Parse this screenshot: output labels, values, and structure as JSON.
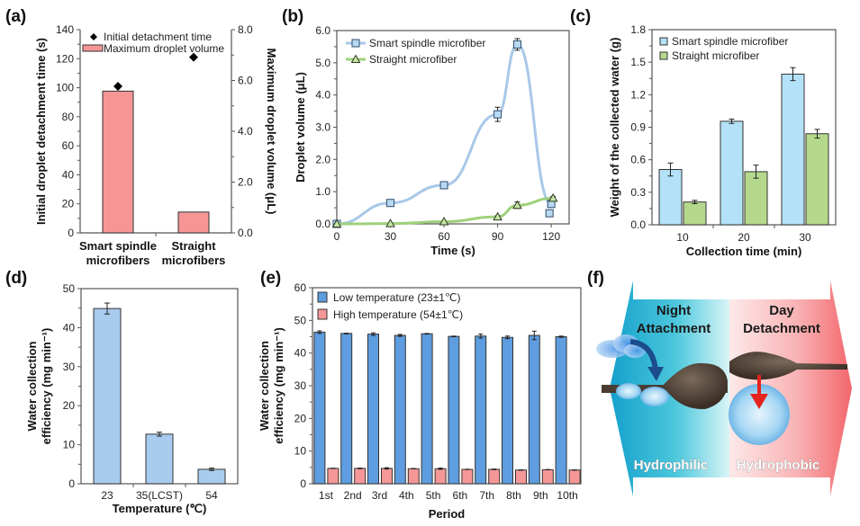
{
  "panels": {
    "a": {
      "label": "(a)"
    },
    "b": {
      "label": "(b)"
    },
    "c": {
      "label": "(c)"
    },
    "d": {
      "label": "(d)"
    },
    "e": {
      "label": "(e)"
    },
    "f": {
      "label": "(f)"
    }
  },
  "chart_data": [
    {
      "id": "a",
      "type": "bar",
      "title": "",
      "categories": [
        "Smart spindle microfibers",
        "Straight microfibers"
      ],
      "category_lines": [
        [
          "Smart spindle",
          "microfibers"
        ],
        [
          "Straight",
          "microfibers"
        ]
      ],
      "ylabel": "Initial droplet detachment time (s)",
      "y2label": "Maximum droplet volume (μL)",
      "ylim": [
        0,
        140
      ],
      "y2lim": [
        0,
        8.0
      ],
      "yticks": [
        0,
        20,
        40,
        60,
        80,
        100,
        120,
        140
      ],
      "y2ticks": [
        "0.0",
        "2.0",
        "4.0",
        "6.0",
        "8.0"
      ],
      "series": [
        {
          "name": "Initial detachment time",
          "kind": "marker",
          "axis": "left",
          "values": [
            101,
            121
          ],
          "color": "#000000"
        },
        {
          "name": "Maximum droplet volume",
          "kind": "bar",
          "axis": "right",
          "values": [
            5.58,
            0.82
          ],
          "color": "#f59595"
        }
      ],
      "legend": "top"
    },
    {
      "id": "b",
      "type": "line",
      "xlabel": "Time (s)",
      "ylabel": "Droplet volume (μL)",
      "xlim": [
        0,
        130
      ],
      "ylim": [
        0,
        6.0
      ],
      "xticks": [
        0,
        30,
        60,
        90,
        120
      ],
      "yticks": [
        "0.0",
        "1.0",
        "2.0",
        "3.0",
        "4.0",
        "5.0",
        "6.0"
      ],
      "series": [
        {
          "name": "Smart spindle microfiber",
          "marker": "square",
          "color": "#a8c8e8",
          "marker_fill": "#b9d9f2",
          "points": [
            [
              0,
              0.0
            ],
            [
              30,
              0.65
            ],
            [
              60,
              1.2
            ],
            [
              90,
              3.4
            ],
            [
              101,
              5.57
            ],
            [
              120,
              0.62
            ],
            [
              119,
              0.33
            ]
          ],
          "errors": [
            0,
            0.03,
            0.1,
            0.22,
            0.18,
            0.1,
            0
          ]
        },
        {
          "name": "Straight microfiber",
          "marker": "triangle",
          "color": "#9ed17a",
          "marker_fill": "#c6e6a8",
          "points": [
            [
              0,
              0.0
            ],
            [
              30,
              0.01
            ],
            [
              60,
              0.07
            ],
            [
              90,
              0.22
            ],
            [
              101,
              0.58
            ],
            [
              121,
              0.8
            ]
          ],
          "errors": [
            0,
            0,
            0.02,
            0.03,
            0.1,
            0.05
          ]
        }
      ],
      "legend": "top-left"
    },
    {
      "id": "c",
      "type": "bar",
      "xlabel": "Collection time (min)",
      "ylabel": "Weight of the collected water (g)",
      "categories": [
        "10",
        "20",
        "30"
      ],
      "ylim": [
        0,
        1.8
      ],
      "yticks": [
        "0.0",
        "0.3",
        "0.6",
        "0.9",
        "1.2",
        "1.5",
        "1.8"
      ],
      "series": [
        {
          "name": "Smart spindle microfiber",
          "values": [
            0.51,
            0.955,
            1.39
          ],
          "errors": [
            0.06,
            0.02,
            0.06
          ],
          "color": "#b3e1f7"
        },
        {
          "name": "Straight microfiber",
          "values": [
            0.21,
            0.49,
            0.84
          ],
          "errors": [
            0.015,
            0.06,
            0.04
          ],
          "color": "#b4d98c"
        }
      ],
      "legend": "top-left"
    },
    {
      "id": "d",
      "type": "bar",
      "xlabel": "Temperature (℃)",
      "ylabel_lines": [
        "Water collection",
        "efficiency (mg min⁻¹)"
      ],
      "categories": [
        "23",
        "35(LCST)",
        "54"
      ],
      "ylim": [
        0,
        50
      ],
      "yticks": [
        0,
        10,
        20,
        30,
        40,
        50
      ],
      "series": [
        {
          "name": "Water collection efficiency",
          "values": [
            44.9,
            12.7,
            3.7
          ],
          "errors": [
            1.4,
            0.5,
            0.3
          ],
          "color": "#a9cbee"
        }
      ]
    },
    {
      "id": "e",
      "type": "bar",
      "xlabel": "Period",
      "ylabel_lines": [
        "Water collection",
        "efficiency (mg min⁻¹)"
      ],
      "categories": [
        "1st",
        "2nd",
        "3rd",
        "4th",
        "5th",
        "6th",
        "7th",
        "8th",
        "9th",
        "10th"
      ],
      "ylim": [
        0,
        60
      ],
      "yticks": [
        0,
        10,
        20,
        30,
        40,
        50,
        60
      ],
      "series": [
        {
          "name": "Low temperature (23±1℃)",
          "values": [
            46.4,
            46.0,
            45.8,
            45.4,
            45.9,
            45.1,
            45.2,
            44.8,
            45.4,
            45.0
          ],
          "errors": [
            0.4,
            0.1,
            0.4,
            0.3,
            0.1,
            0.1,
            0.6,
            0.4,
            1.3,
            0.2
          ],
          "color": "#5e9ddf"
        },
        {
          "name": "High temperature (54±1℃)",
          "values": [
            4.7,
            4.7,
            4.7,
            4.6,
            4.6,
            4.4,
            4.4,
            4.2,
            4.3,
            4.2
          ],
          "errors": [
            0.05,
            0.1,
            0.2,
            0.05,
            0.2,
            0.05,
            0.1,
            0.05,
            0.05,
            0.05
          ],
          "color": "#f59797"
        }
      ],
      "legend": "top-left"
    }
  ],
  "schematic": {
    "night": "Night",
    "attachment": "Attachment",
    "day": "Day",
    "detachment": "Detachment",
    "hydrophilic": "Hydrophilic",
    "hydrophobic": "Hydrophobic",
    "colors": {
      "cold": "#1aa0cc",
      "cold_light": "#bfeff3",
      "warm_light": "#fde0e0",
      "warm": "#f26a6e",
      "fiber": "#4a3c32",
      "droplet": "#8cc8ef",
      "arrow_blue": "#1b4d8c",
      "arrow_red": "#e3231c"
    }
  }
}
